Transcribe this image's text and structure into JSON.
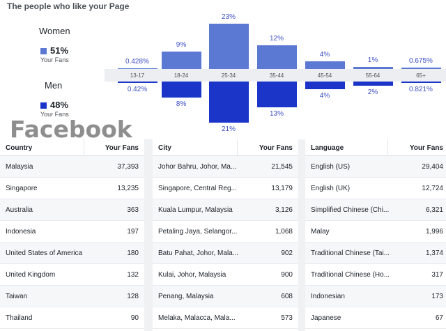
{
  "title": "The people who like your Page",
  "women": {
    "heading": "Women",
    "percent": "51%",
    "sub": "Your Fans",
    "color": "#5b79d2"
  },
  "men": {
    "heading": "Men",
    "percent": "48%",
    "sub": "Your Fans",
    "color": "#1b35c9"
  },
  "watermark": "Facebook",
  "chart_data": {
    "type": "bar",
    "categories": [
      "13-17",
      "18-24",
      "25-34",
      "35-44",
      "45-54",
      "55-64",
      "65+"
    ],
    "series": [
      {
        "name": "Women",
        "values": [
          0.428,
          9,
          23,
          12,
          4,
          1,
          0.675
        ],
        "labels": [
          "0.428%",
          "9%",
          "23%",
          "12%",
          "4%",
          "1%",
          "0.675%"
        ],
        "color": "#5b79d2"
      },
      {
        "name": "Men",
        "values": [
          0.42,
          8,
          21,
          13,
          4,
          2,
          0.821
        ],
        "labels": [
          "0.42%",
          "8%",
          "21%",
          "13%",
          "4%",
          "2%",
          "0.821%"
        ],
        "color": "#1b35c9"
      }
    ]
  },
  "tables": [
    {
      "col1": "Country",
      "col2": "Your Fans",
      "rows": [
        {
          "name": "Malaysia",
          "fans": "37,393"
        },
        {
          "name": "Singapore",
          "fans": "13,235"
        },
        {
          "name": "Australia",
          "fans": "363"
        },
        {
          "name": "Indonesia",
          "fans": "197"
        },
        {
          "name": "United States of America",
          "fans": "180"
        },
        {
          "name": "United Kingdom",
          "fans": "132"
        },
        {
          "name": "Taiwan",
          "fans": "128"
        },
        {
          "name": "Thailand",
          "fans": "90"
        }
      ]
    },
    {
      "col1": "City",
      "col2": "Your Fans",
      "rows": [
        {
          "name": "Johor Bahru, Johor, Ma...",
          "fans": "21,545"
        },
        {
          "name": "Singapore, Central Reg...",
          "fans": "13,179"
        },
        {
          "name": "Kuala Lumpur, Malaysia",
          "fans": "3,126"
        },
        {
          "name": "Petaling Jaya, Selangor...",
          "fans": "1,068"
        },
        {
          "name": "Batu Pahat, Johor, Mala...",
          "fans": "902"
        },
        {
          "name": "Kulai, Johor, Malaysia",
          "fans": "900"
        },
        {
          "name": "Penang, Malaysia",
          "fans": "608"
        },
        {
          "name": "Melaka, Malacca, Mala...",
          "fans": "573"
        }
      ]
    },
    {
      "col1": "Language",
      "col2": "Your Fans",
      "rows": [
        {
          "name": "English (US)",
          "fans": "29,404"
        },
        {
          "name": "English (UK)",
          "fans": "12,724"
        },
        {
          "name": "Simplified Chinese (Chi...",
          "fans": "6,321"
        },
        {
          "name": "Malay",
          "fans": "1,996"
        },
        {
          "name": "Traditional Chinese (Tai...",
          "fans": "1,374"
        },
        {
          "name": "Traditional Chinese (Ho...",
          "fans": "317"
        },
        {
          "name": "Indonesian",
          "fans": "173"
        },
        {
          "name": "Japanese",
          "fans": "67"
        }
      ]
    }
  ]
}
